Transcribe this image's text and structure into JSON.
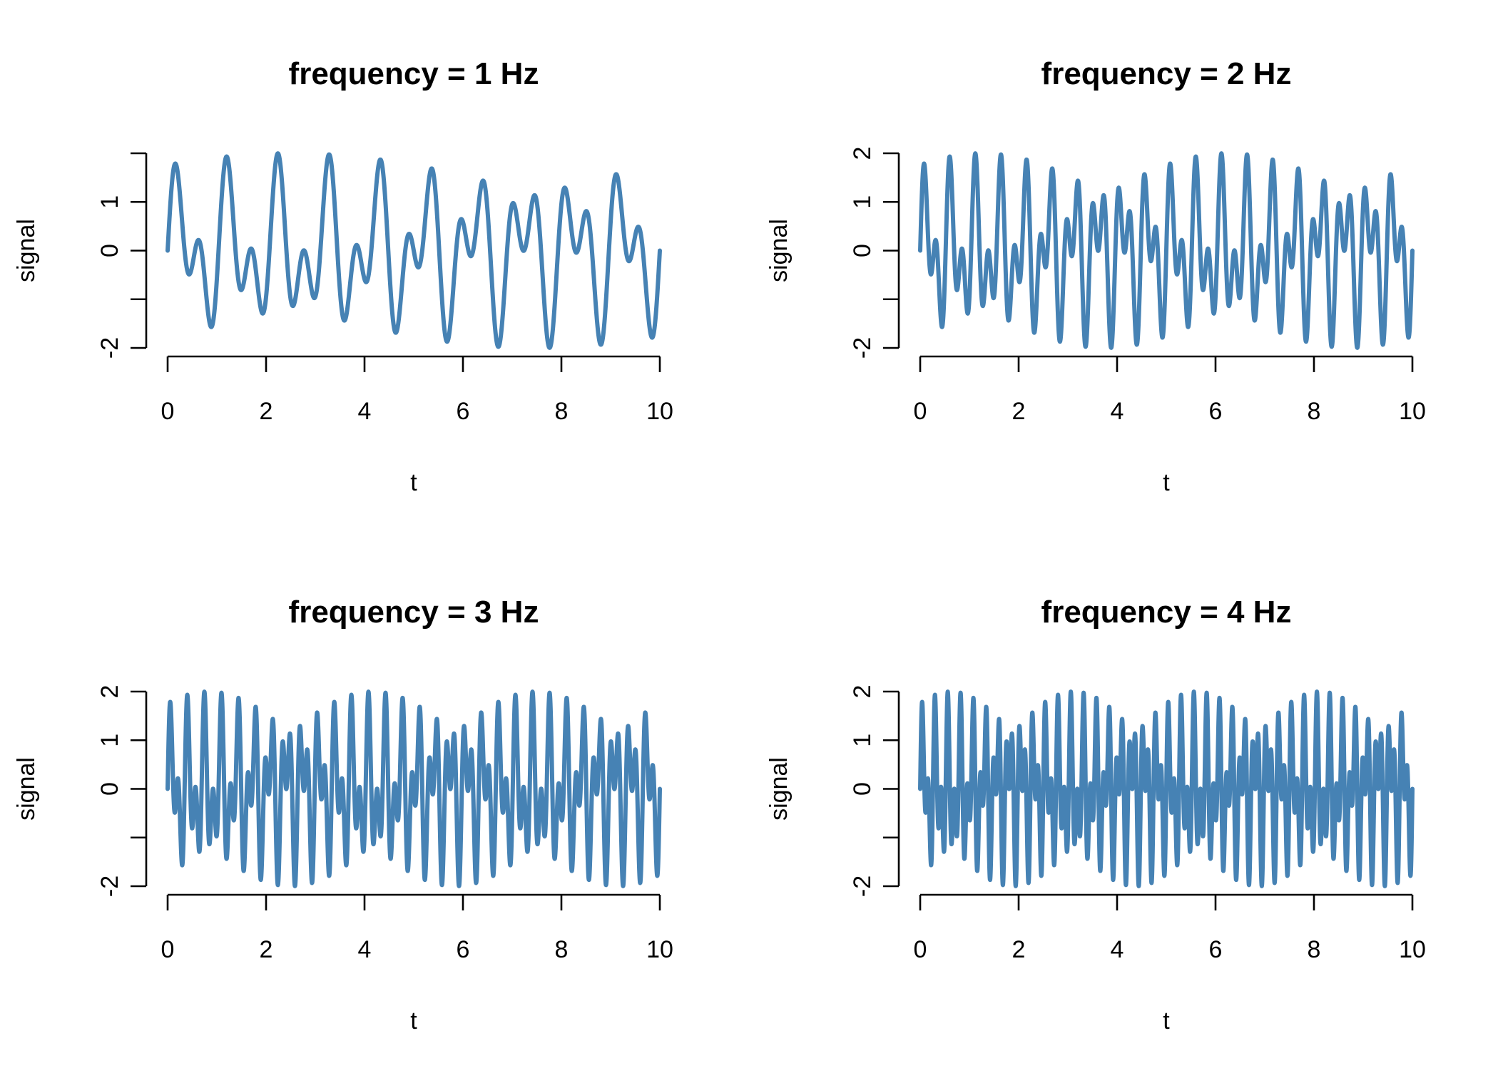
{
  "chart_data": [
    {
      "type": "line",
      "title": "frequency =  1 Hz",
      "xlabel": "t",
      "ylabel": "signal",
      "xlim": [
        0,
        10
      ],
      "ylim": [
        -2,
        2
      ],
      "x_ticks": [
        "0",
        "2",
        "4",
        "6",
        "8",
        "10"
      ],
      "y_ticks": [
        "-2",
        "",
        "0",
        "1",
        ""
      ],
      "frequency_hz": 1,
      "x_range": [
        0,
        10
      ],
      "series": [
        {
          "formula": "sin(2*pi*f*t) + sin(2*pi*0.95*(2*f)*t)",
          "color": "#4682B4"
        }
      ]
    },
    {
      "type": "line",
      "title": "frequency =  2 Hz",
      "xlabel": "t",
      "ylabel": "signal",
      "xlim": [
        0,
        10
      ],
      "ylim": [
        -2,
        2
      ],
      "x_ticks": [
        "0",
        "2",
        "4",
        "6",
        "8",
        "10"
      ],
      "y_ticks": [
        "-2",
        "",
        "0",
        "1",
        "2"
      ],
      "frequency_hz": 2,
      "x_range": [
        0,
        10
      ],
      "series": [
        {
          "formula": "sin(2*pi*f*t) + sin(2*pi*0.95*(2*f)*t)",
          "color": "#4682B4"
        }
      ]
    },
    {
      "type": "line",
      "title": "frequency =  3 Hz",
      "xlabel": "t",
      "ylabel": "signal",
      "xlim": [
        0,
        10
      ],
      "ylim": [
        -2,
        2
      ],
      "x_ticks": [
        "0",
        "2",
        "4",
        "6",
        "8",
        "10"
      ],
      "y_ticks": [
        "-2",
        "",
        "0",
        "1",
        "2"
      ],
      "frequency_hz": 3,
      "x_range": [
        0,
        10
      ],
      "series": [
        {
          "formula": "sin(2*pi*f*t) + sin(2*pi*0.95*(2*f)*t)",
          "color": "#4682B4"
        }
      ]
    },
    {
      "type": "line",
      "title": "frequency =  4 Hz",
      "xlabel": "t",
      "ylabel": "signal",
      "xlim": [
        0,
        10
      ],
      "ylim": [
        -2,
        2
      ],
      "x_ticks": [
        "0",
        "2",
        "4",
        "6",
        "8",
        "10"
      ],
      "y_ticks": [
        "-2",
        "",
        "0",
        "1",
        "2"
      ],
      "frequency_hz": 4,
      "x_range": [
        0,
        10
      ],
      "series": [
        {
          "formula": "sin(2*pi*f*t) + sin(2*pi*0.95*(2*f)*t)",
          "color": "#4682B4"
        }
      ]
    }
  ]
}
